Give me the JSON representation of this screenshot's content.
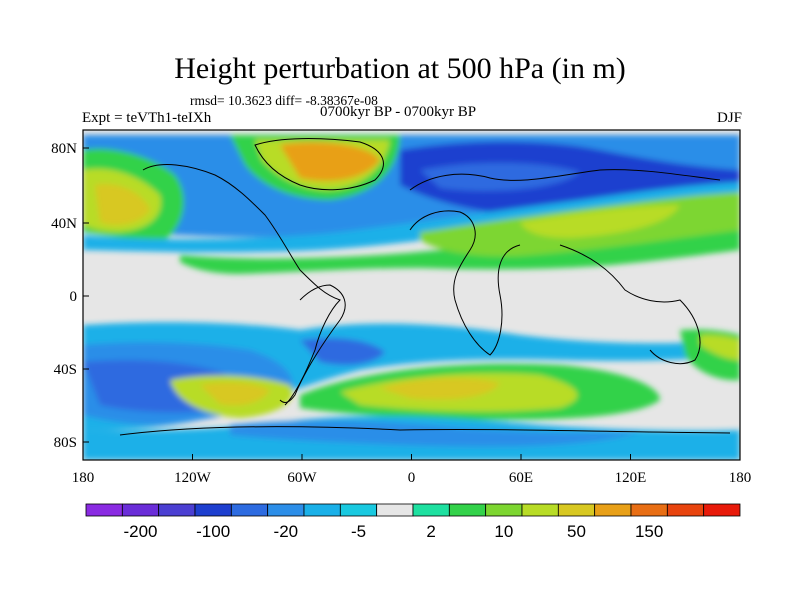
{
  "title": "Height perturbation at 500 hPa (in m)",
  "stats": "rmsd= 10.3623 diff= -8.38367e-08",
  "experiment": "Expt = teVTh1-teIXh",
  "period": "0700kyr BP - 0700kyr BP",
  "season": "DJF",
  "axes": {
    "x_ticks": [
      "180",
      "120W",
      "60W",
      "0",
      "60E",
      "120E",
      "180"
    ],
    "y_ticks": [
      "80N",
      "40N",
      "0",
      "40S",
      "80S"
    ]
  },
  "colorbar": {
    "colors": [
      "#8a2be2",
      "#6a2dd8",
      "#4b3fd2",
      "#1e3fcf",
      "#2d6be0",
      "#2c8ee8",
      "#1ab0e8",
      "#19c9e0",
      "#e6e6e6",
      "#1ee0a0",
      "#33d24a",
      "#7dd630",
      "#b8dc26",
      "#d8c822",
      "#e8a018",
      "#e86e14",
      "#e8440e",
      "#e81a0a"
    ],
    "labels": [
      "-200",
      "-100",
      "-20",
      "-5",
      "2",
      "10",
      "50",
      "150"
    ]
  }
}
